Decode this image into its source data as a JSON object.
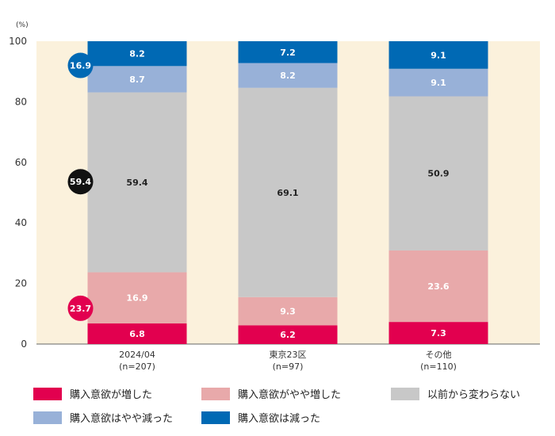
{
  "chart_data": {
    "type": "bar",
    "stacked": true,
    "unit_label": "(%)",
    "ylim": [
      0,
      100
    ],
    "yticks": [
      0,
      20,
      40,
      60,
      80,
      100
    ],
    "grid": false,
    "background_color": "#FBF1DC",
    "legend_placement": "bottom",
    "categories": [
      {
        "name": "2024/04",
        "n": "(n=207)"
      },
      {
        "name": "東京23区",
        "n": "(n=97)"
      },
      {
        "name": "その他",
        "n": "(n=110)"
      }
    ],
    "series": [
      {
        "name": "購入意欲が増した",
        "color": "#E2004F",
        "label_color": "#ffffff",
        "values": [
          6.8,
          6.2,
          7.3
        ]
      },
      {
        "name": "購入意欲がやや増した",
        "color": "#E8A9AA",
        "label_color": "#ffffff",
        "values": [
          16.9,
          9.3,
          23.6
        ]
      },
      {
        "name": "以前から変わらない",
        "color": "#C8C8C8",
        "label_color": "#222222",
        "values": [
          59.4,
          69.1,
          50.9
        ]
      },
      {
        "name": "購入意欲はやや減った",
        "color": "#98B1D8",
        "label_color": "#ffffff",
        "values": [
          8.7,
          8.2,
          9.1
        ]
      },
      {
        "name": "購入意欲は減った",
        "color": "#0069B4",
        "label_color": "#ffffff",
        "values": [
          8.2,
          7.2,
          9.1
        ]
      }
    ],
    "callouts": [
      {
        "label": "16.9",
        "category": 0,
        "y": 92,
        "color": "#0069B4",
        "text_color": "#ffffff"
      },
      {
        "label": "59.4",
        "category": 0,
        "y": 53.6,
        "color": "#111111",
        "text_color": "#ffffff"
      },
      {
        "label": "23.7",
        "category": 0,
        "y": 11.8,
        "color": "#E2004F",
        "text_color": "#ffffff"
      }
    ]
  }
}
